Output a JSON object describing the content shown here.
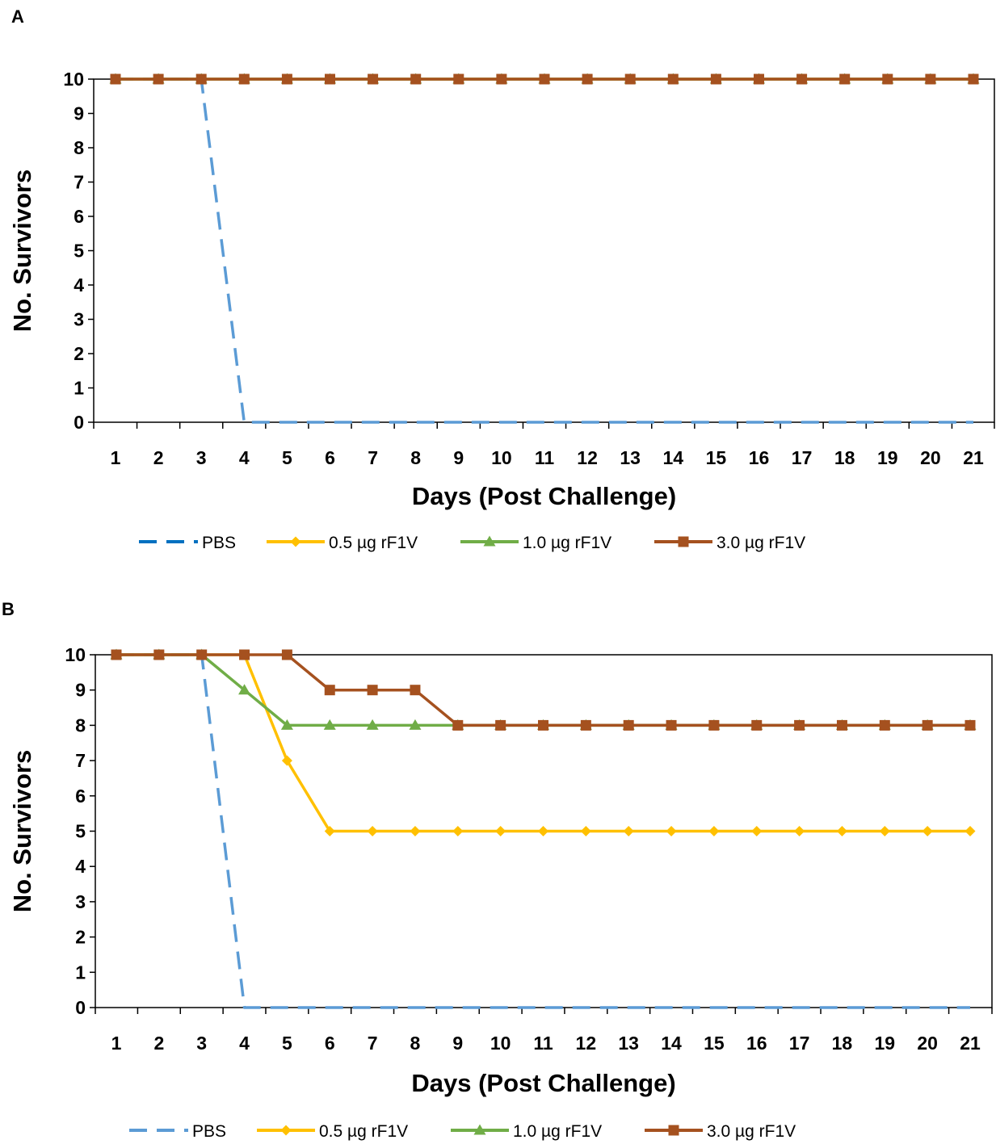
{
  "chart_data": [
    {
      "type": "line",
      "panel_label": "A",
      "title": "",
      "xlabel": "Days (Post Challenge)",
      "ylabel": "No. Survivors",
      "xlim": [
        1,
        21
      ],
      "ylim": [
        0,
        10
      ],
      "categories": [
        "1",
        "2",
        "3",
        "4",
        "5",
        "6",
        "7",
        "8",
        "9",
        "10",
        "11",
        "12",
        "13",
        "14",
        "15",
        "16",
        "17",
        "18",
        "19",
        "20",
        "21"
      ],
      "y_ticks": [
        "0",
        "1",
        "2",
        "3",
        "4",
        "5",
        "6",
        "7",
        "8",
        "9",
        "10"
      ],
      "grid": false,
      "legend_position": "bottom",
      "series": [
        {
          "name": "PBS",
          "color": "#5B9BD5",
          "legend_color": "#0070C0",
          "style": "dashed",
          "marker": "none",
          "values": [
            10,
            10,
            10,
            0,
            0,
            0,
            0,
            0,
            0,
            0,
            0,
            0,
            0,
            0,
            0,
            0,
            0,
            0,
            0,
            0,
            0
          ]
        },
        {
          "name": "0.5 µg rF1V",
          "color": "#FFC000",
          "style": "solid",
          "marker": "diamond",
          "values": [
            10,
            10,
            10,
            10,
            10,
            10,
            10,
            10,
            10,
            10,
            10,
            10,
            10,
            10,
            10,
            10,
            10,
            10,
            10,
            10,
            10
          ]
        },
        {
          "name": "1.0 µg rF1V",
          "color": "#70AD47",
          "style": "solid",
          "marker": "triangle",
          "values": [
            10,
            10,
            10,
            10,
            10,
            10,
            10,
            10,
            10,
            10,
            10,
            10,
            10,
            10,
            10,
            10,
            10,
            10,
            10,
            10,
            10
          ]
        },
        {
          "name": "3.0 µg rF1V",
          "color": "#A5511F",
          "style": "solid",
          "marker": "square",
          "values": [
            10,
            10,
            10,
            10,
            10,
            10,
            10,
            10,
            10,
            10,
            10,
            10,
            10,
            10,
            10,
            10,
            10,
            10,
            10,
            10,
            10
          ]
        }
      ]
    },
    {
      "type": "line",
      "panel_label": "B",
      "title": "",
      "xlabel": "Days (Post Challenge)",
      "ylabel": "No. Survivors",
      "xlim": [
        1,
        21
      ],
      "ylim": [
        0,
        10
      ],
      "categories": [
        "1",
        "2",
        "3",
        "4",
        "5",
        "6",
        "7",
        "8",
        "9",
        "10",
        "11",
        "12",
        "13",
        "14",
        "15",
        "16",
        "17",
        "18",
        "19",
        "20",
        "21"
      ],
      "y_ticks": [
        "0",
        "1",
        "2",
        "3",
        "4",
        "5",
        "6",
        "7",
        "8",
        "9",
        "10"
      ],
      "grid": false,
      "legend_position": "bottom",
      "series": [
        {
          "name": "PBS",
          "color": "#5B9BD5",
          "legend_color": "#5B9BD5",
          "style": "dashed",
          "marker": "none",
          "values": [
            10,
            10,
            10,
            0,
            0,
            0,
            0,
            0,
            0,
            0,
            0,
            0,
            0,
            0,
            0,
            0,
            0,
            0,
            0,
            0,
            0
          ]
        },
        {
          "name": "0.5 µg rF1V",
          "color": "#FFC000",
          "style": "solid",
          "marker": "diamond",
          "values": [
            10,
            10,
            10,
            10,
            7,
            5,
            5,
            5,
            5,
            5,
            5,
            5,
            5,
            5,
            5,
            5,
            5,
            5,
            5,
            5,
            5
          ]
        },
        {
          "name": "1.0 µg rF1V",
          "color": "#70AD47",
          "style": "solid",
          "marker": "triangle",
          "values": [
            10,
            10,
            10,
            9,
            8,
            8,
            8,
            8,
            8,
            8,
            8,
            8,
            8,
            8,
            8,
            8,
            8,
            8,
            8,
            8,
            8
          ]
        },
        {
          "name": "3.0 µg rF1V",
          "color": "#A5511F",
          "style": "solid",
          "marker": "square",
          "values": [
            10,
            10,
            10,
            10,
            10,
            9,
            9,
            9,
            8,
            8,
            8,
            8,
            8,
            8,
            8,
            8,
            8,
            8,
            8,
            8,
            8
          ]
        }
      ]
    }
  ]
}
